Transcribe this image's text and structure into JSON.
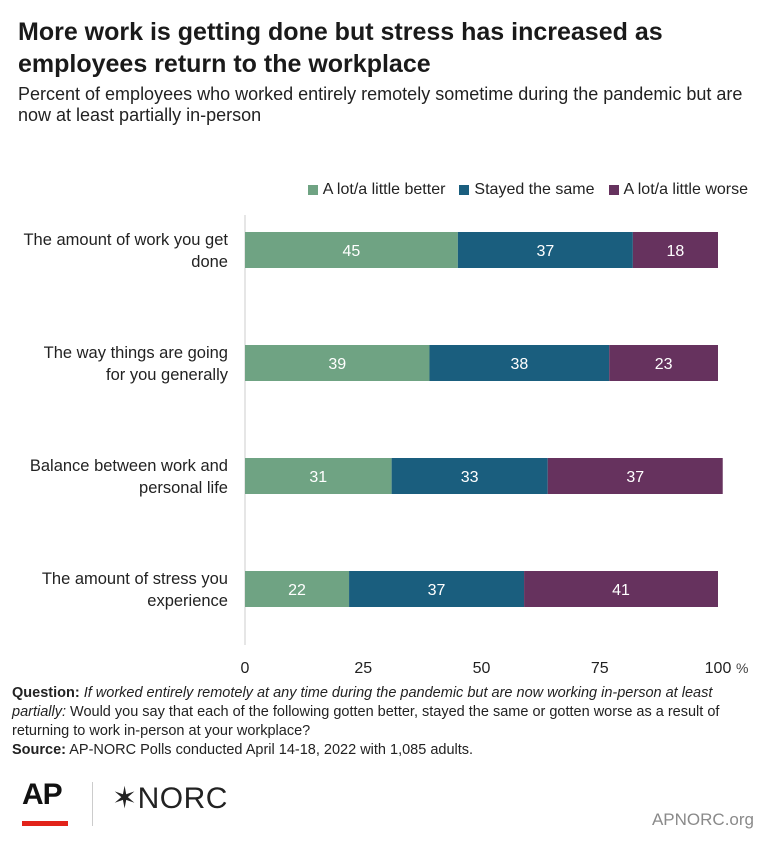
{
  "header": {
    "title": "More work is getting done but stress has increased as employees return to the workplace",
    "subtitle": "Percent of employees who worked entirely remotely sometime during the pandemic but are now at least partially in-person"
  },
  "footnote": {
    "question_label": "Question:",
    "question_italic": "If worked entirely remotely at any time during the pandemic but are now working in-person at least partially:",
    "question_text": "Would you say that each of the following gotten better, stayed the same or gotten worse as a result of returning to work in-person at your workplace?",
    "source_label": "Source:",
    "source_text": "AP-NORC Polls conducted April 14-18, 2022 with 1,085 adults."
  },
  "branding": {
    "ap": "AP",
    "norc": "✶NORC",
    "site": "APNORC.org"
  },
  "chart_data": {
    "type": "bar",
    "orientation": "horizontal",
    "stacked": true,
    "categories": [
      "The amount of work you get done",
      "The way things are going for you generally",
      "Balance between work and personal life",
      "The amount of stress you experience"
    ],
    "series": [
      {
        "name": "A lot/a little better",
        "values": [
          45,
          39,
          31,
          22
        ],
        "color": "#6fa383"
      },
      {
        "name": "Stayed the same",
        "values": [
          37,
          38,
          33,
          37
        ],
        "color": "#1a5e7e"
      },
      {
        "name": "A lot/a little worse",
        "values": [
          18,
          23,
          37,
          41
        ],
        "color": "#66325e"
      }
    ],
    "xlim": [
      0,
      100
    ],
    "xticks": [
      0,
      25,
      50,
      75,
      100
    ],
    "xtick_labels": [
      "0",
      "25",
      "50",
      "75",
      "100"
    ],
    "x_unit": "%",
    "legend_position": "top-right",
    "data_label_color": "#ffffff",
    "grid": false
  }
}
